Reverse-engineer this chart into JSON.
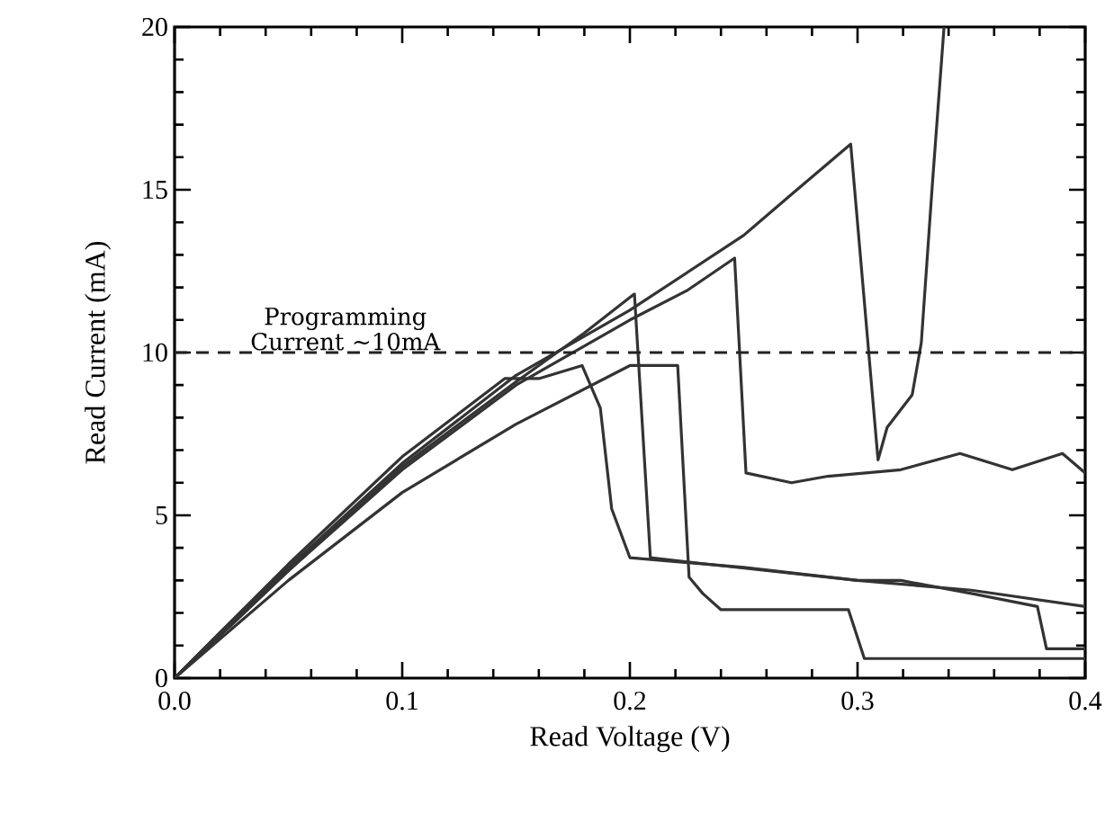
{
  "chart_data": {
    "type": "line",
    "xlabel": "Read Voltage (V)",
    "ylabel": "Read Current (mA)",
    "xlim": [
      0,
      0.4
    ],
    "ylim": [
      0,
      20
    ],
    "xticks": [
      {
        "value": 0,
        "label": "0.0"
      },
      0.1,
      0.2,
      0.3,
      0.4
    ],
    "yticks": [
      0,
      5,
      10,
      15,
      20
    ],
    "grid": false,
    "marker": "none",
    "line_style": "solid",
    "ref_lines": [
      {
        "axis": "y",
        "value": 10,
        "label": "Programming Current ∼10mA",
        "line_style": "dashed",
        "color": "#222222"
      }
    ],
    "series": [
      {
        "color": "#333333",
        "x": [
          0,
          0.02,
          0.05,
          0.1,
          0.15,
          0.2,
          0.25,
          0.27,
          0.297,
          0.309,
          0.313,
          0.324,
          0.328,
          0.333,
          0.338
        ],
        "values": [
          0,
          1.4,
          3.4,
          6.6,
          9.3,
          11.3,
          13.6,
          14.8,
          16.4,
          6.7,
          7.7,
          8.7,
          10.3,
          15.3,
          20
        ]
      },
      {
        "color": "#333333",
        "x": [
          0,
          0.02,
          0.05,
          0.1,
          0.15,
          0.2,
          0.225,
          0.246,
          0.251,
          0.271,
          0.287,
          0.319,
          0.345,
          0.368,
          0.39,
          0.4
        ],
        "values": [
          0,
          1.3,
          3.3,
          6.4,
          9.0,
          11.0,
          11.9,
          12.9,
          6.3,
          6.0,
          6.2,
          6.4,
          6.9,
          6.4,
          6.9,
          6.3
        ]
      },
      {
        "color": "#333333",
        "x": [
          0,
          0.05,
          0.1,
          0.15,
          0.18,
          0.202,
          0.209,
          0.234,
          0.3,
          0.35,
          0.4
        ],
        "values": [
          0,
          3.3,
          6.5,
          9.1,
          10.6,
          11.8,
          3.7,
          3.5,
          3.0,
          2.7,
          2.2
        ]
      },
      {
        "color": "#333333",
        "x": [
          0,
          0.05,
          0.1,
          0.15,
          0.2,
          0.221,
          0.226,
          0.232,
          0.24,
          0.296,
          0.303,
          0.4
        ],
        "values": [
          0,
          3.0,
          5.7,
          7.8,
          9.6,
          9.6,
          3.1,
          2.6,
          2.1,
          2.1,
          0.6,
          0.6
        ]
      },
      {
        "color": "#333333",
        "x": [
          0,
          0.05,
          0.1,
          0.145,
          0.16,
          0.179,
          0.187,
          0.192,
          0.2,
          0.25,
          0.3,
          0.319,
          0.35,
          0.379,
          0.383,
          0.4
        ],
        "values": [
          0,
          3.5,
          6.8,
          9.2,
          9.2,
          9.6,
          8.3,
          5.2,
          3.7,
          3.4,
          3.0,
          3.0,
          2.6,
          2.2,
          0.9,
          0.9
        ]
      }
    ]
  }
}
